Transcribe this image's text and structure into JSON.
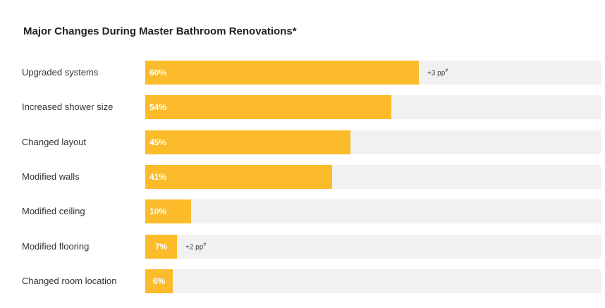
{
  "chart_data": {
    "type": "bar",
    "orientation": "horizontal",
    "title": "Major Changes During Master Bathroom Renovations*",
    "xlim": [
      0,
      100
    ],
    "categories": [
      "Upgraded systems",
      "Increased shower size",
      "Changed layout",
      "Modified walls",
      "Modified ceiling",
      "Modified flooring",
      "Changed room location"
    ],
    "values": [
      60,
      54,
      45,
      41,
      10,
      7,
      6
    ],
    "value_labels": [
      "60%",
      "54%",
      "45%",
      "41%",
      "10%",
      "7%",
      "6%"
    ],
    "annotations": [
      "+3 pp",
      "",
      "",
      "",
      "",
      "+2 pp",
      ""
    ],
    "annotation_mark": "#",
    "bar_color": "#fbbb2b",
    "track_color": "#f1f1f1"
  }
}
